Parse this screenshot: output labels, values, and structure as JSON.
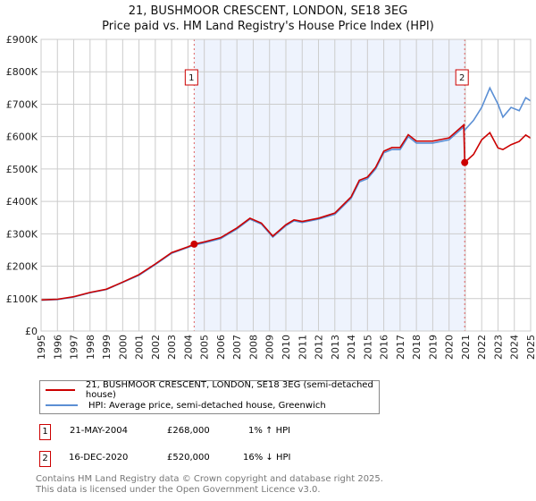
{
  "chart_data": {
    "type": "line",
    "title": "21, BUSHMOOR CRESCENT, LONDON, SE18 3EG",
    "subtitle": "Price paid vs. HM Land Registry's House Price Index (HPI)",
    "xlim": [
      1995,
      2025
    ],
    "ylim": [
      0,
      900000
    ],
    "x_ticks": [
      "1995",
      "1996",
      "1997",
      "1998",
      "1999",
      "2000",
      "2001",
      "2002",
      "2003",
      "2004",
      "2005",
      "2006",
      "2007",
      "2008",
      "2009",
      "2010",
      "2011",
      "2012",
      "2013",
      "2014",
      "2015",
      "2016",
      "2017",
      "2018",
      "2019",
      "2020",
      "2021",
      "2022",
      "2023",
      "2024",
      "2025"
    ],
    "y_ticks": [
      {
        "v": 0,
        "label": "£0"
      },
      {
        "v": 100000,
        "label": "£100K"
      },
      {
        "v": 200000,
        "label": "£200K"
      },
      {
        "v": 300000,
        "label": "£300K"
      },
      {
        "v": 400000,
        "label": "£400K"
      },
      {
        "v": 500000,
        "label": "£500K"
      },
      {
        "v": 600000,
        "label": "£600K"
      },
      {
        "v": 700000,
        "label": "£700K"
      },
      {
        "v": 800000,
        "label": "£800K"
      },
      {
        "v": 900000,
        "label": "£900K"
      }
    ],
    "grid": true,
    "shaded_range": [
      2004.38,
      2020.96
    ],
    "series": [
      {
        "name": "21, BUSHMOOR CRESCENT, LONDON, SE18 3EG (semi-detached house)",
        "color": "#cc0000",
        "x": [
          1995,
          1996,
          1997,
          1998,
          1999,
          2000,
          2001,
          2002,
          2003,
          2004,
          2004.38,
          2005,
          2006,
          2007,
          2007.8,
          2008.5,
          2009.2,
          2010,
          2010.5,
          2011,
          2012,
          2013,
          2014,
          2014.5,
          2015,
          2015.5,
          2016,
          2016.5,
          2017,
          2017.5,
          2018,
          2019,
          2020,
          2020.9,
          2020.96,
          2021.5,
          2022,
          2022.5,
          2023,
          2023.3,
          2023.8,
          2024.3,
          2024.7,
          2025
        ],
        "y": [
          96000,
          98000,
          106000,
          119000,
          129000,
          151000,
          174000,
          207000,
          242000,
          260000,
          268000,
          275000,
          288000,
          318000,
          348000,
          333000,
          293000,
          328000,
          343000,
          338000,
          348000,
          364000,
          414000,
          465000,
          475000,
          505000,
          555000,
          566000,
          566000,
          606000,
          586000,
          586000,
          596000,
          636000,
          520000,
          545000,
          590000,
          612000,
          565000,
          560000,
          575000,
          585000,
          605000,
          595000
        ]
      },
      {
        "name": "HPI: Average price, semi-detached house, Greenwich",
        "color": "#5b8fd4",
        "x": [
          1995,
          1996,
          1997,
          1998,
          1999,
          2000,
          2001,
          2002,
          2003,
          2004,
          2004.38,
          2005,
          2006,
          2007,
          2007.8,
          2008.5,
          2009.2,
          2010,
          2010.5,
          2011,
          2012,
          2013,
          2014,
          2014.5,
          2015,
          2015.5,
          2016,
          2016.5,
          2017,
          2017.5,
          2018,
          2019,
          2020,
          2020.9,
          2020.96,
          2021.5,
          2022,
          2022.5,
          2023,
          2023.3,
          2023.8,
          2024.3,
          2024.7,
          2025
        ],
        "y": [
          95000,
          97000,
          105000,
          118000,
          128000,
          150000,
          172000,
          205000,
          240000,
          258000,
          265000,
          272000,
          285000,
          315000,
          345000,
          330000,
          290000,
          325000,
          340000,
          335000,
          345000,
          360000,
          410000,
          460000,
          470000,
          500000,
          550000,
          560000,
          560000,
          600000,
          580000,
          580000,
          590000,
          630000,
          620000,
          650000,
          690000,
          750000,
          700000,
          660000,
          690000,
          680000,
          720000,
          710000
        ]
      }
    ],
    "sales": [
      {
        "n": "1",
        "x": 2004.38,
        "y": 268000
      },
      {
        "n": "2",
        "x": 2020.96,
        "y": 520000
      }
    ]
  },
  "legend": {
    "red": "21, BUSHMOOR CRESCENT, LONDON, SE18 3EG (semi-detached house)",
    "blue": "HPI: Average price, semi-detached house, Greenwich"
  },
  "transactions": [
    {
      "n": "1",
      "date": "21-MAY-2004",
      "price": "£268,000",
      "hpi": "1% ↑ HPI"
    },
    {
      "n": "2",
      "date": "16-DEC-2020",
      "price": "£520,000",
      "hpi": "16% ↓ HPI"
    }
  ],
  "footer": {
    "line1": "Contains HM Land Registry data © Crown copyright and database right 2025.",
    "line2": "This data is licensed under the Open Government Licence v3.0."
  }
}
